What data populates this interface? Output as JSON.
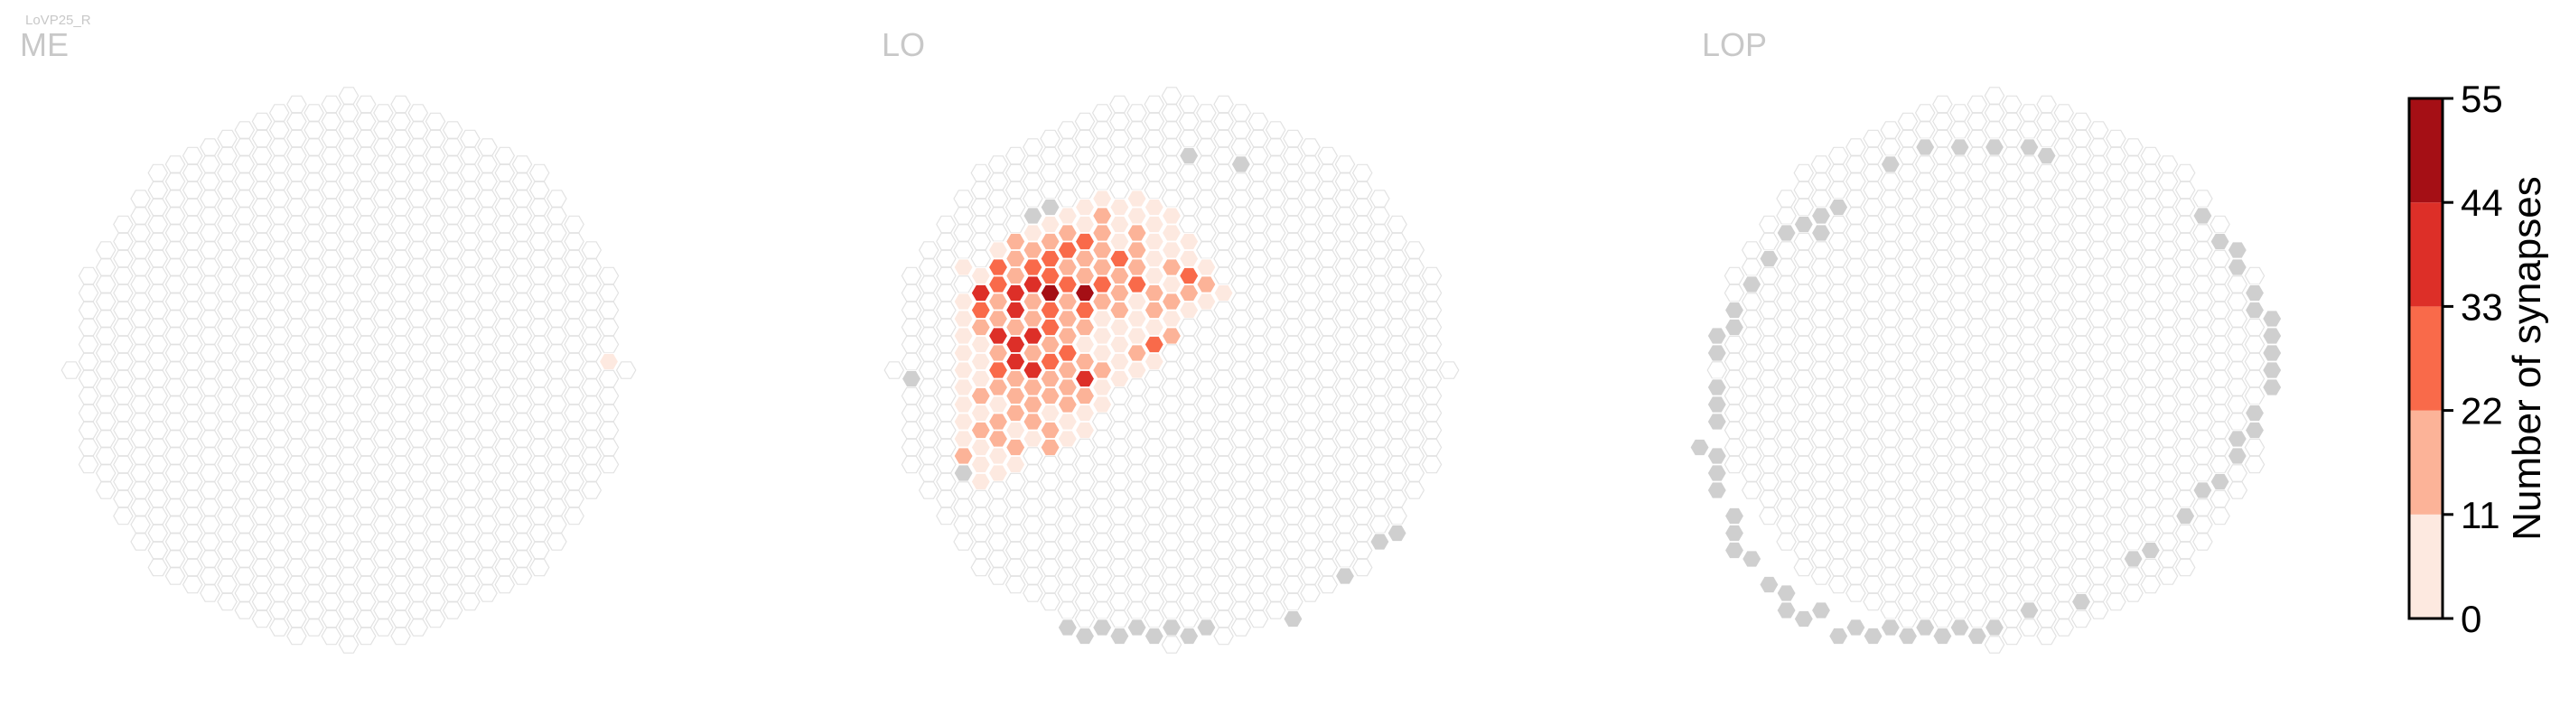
{
  "figure": {
    "cell_type_label": "LoVP25_R",
    "panels": [
      "ME",
      "LO",
      "LOP"
    ]
  },
  "colorbar": {
    "label": "Number of synapses",
    "ticks": [
      "0",
      "11",
      "22",
      "33",
      "44",
      "55"
    ],
    "bins": [
      {
        "from": 0,
        "to": 11,
        "color": "#fde9e0"
      },
      {
        "from": 11,
        "to": 22,
        "color": "#fcb398"
      },
      {
        "from": 22,
        "to": 33,
        "color": "#f96a4a"
      },
      {
        "from": 33,
        "to": 44,
        "color": "#dd2f28"
      },
      {
        "from": 44,
        "to": 55,
        "color": "#a50f15"
      }
    ]
  },
  "style": {
    "empty_fill": "#ffffff",
    "empty_stroke": "#e2e2e2",
    "outside_fill": "#cfcfcf",
    "panel_label_color": "#c8c8c8"
  },
  "chart_data": {
    "type": "heatmap",
    "layout": "hexagonal column map per neuropil",
    "value_label": "Number of synapses",
    "range": [
      0,
      55
    ],
    "panels": [
      {
        "name": "ME",
        "synapses": [
          [
            15,
            -1,
            8
          ]
        ],
        "no_data": []
      },
      {
        "name": "LO",
        "synapses": [
          [
            -5,
            -10,
            3
          ],
          [
            -4,
            -10,
            2
          ],
          [
            -3,
            -10,
            4
          ],
          [
            -2,
            -10,
            3
          ],
          [
            -1,
            -10,
            2
          ],
          [
            -7,
            -9,
            4
          ],
          [
            -6,
            -9,
            3
          ],
          [
            -5,
            -9,
            6
          ],
          [
            -4,
            -9,
            18
          ],
          [
            -3,
            -9,
            6
          ],
          [
            -2,
            -9,
            5
          ],
          [
            -1,
            -9,
            6
          ],
          [
            0,
            -9,
            5
          ],
          [
            -9,
            -8,
            15
          ],
          [
            -8,
            -8,
            6
          ],
          [
            -7,
            -8,
            18
          ],
          [
            -6,
            -8,
            20
          ],
          [
            -5,
            -8,
            25
          ],
          [
            -4,
            -8,
            18
          ],
          [
            -3,
            -8,
            9
          ],
          [
            -2,
            -8,
            12
          ],
          [
            -1,
            -8,
            8
          ],
          [
            0,
            -8,
            4
          ],
          [
            1,
            -8,
            3
          ],
          [
            -10,
            -7,
            8
          ],
          [
            -9,
            -7,
            12
          ],
          [
            -8,
            -7,
            16
          ],
          [
            -7,
            -7,
            28
          ],
          [
            -6,
            -7,
            24
          ],
          [
            -5,
            -7,
            20
          ],
          [
            -4,
            -7,
            14
          ],
          [
            -3,
            -7,
            24
          ],
          [
            -2,
            -7,
            12
          ],
          [
            -1,
            -7,
            10
          ],
          [
            0,
            -7,
            6
          ],
          [
            1,
            -7,
            4
          ],
          [
            -12,
            -6,
            4
          ],
          [
            -11,
            -6,
            6
          ],
          [
            -10,
            -6,
            30
          ],
          [
            -9,
            -6,
            12
          ],
          [
            -8,
            -6,
            24
          ],
          [
            -7,
            -6,
            28
          ],
          [
            -6,
            -6,
            18
          ],
          [
            -5,
            -6,
            22
          ],
          [
            -4,
            -6,
            16
          ],
          [
            -3,
            -6,
            20
          ],
          [
            -2,
            -6,
            14
          ],
          [
            -1,
            -6,
            8
          ],
          [
            0,
            -6,
            20
          ],
          [
            1,
            -6,
            28
          ],
          [
            2,
            -6,
            10
          ],
          [
            -11,
            -5,
            38
          ],
          [
            -10,
            -5,
            24
          ],
          [
            -9,
            -5,
            40
          ],
          [
            -8,
            -5,
            36
          ],
          [
            -7,
            -5,
            50
          ],
          [
            -6,
            -5,
            28
          ],
          [
            -5,
            -5,
            55
          ],
          [
            -4,
            -5,
            30
          ],
          [
            -3,
            -5,
            22
          ],
          [
            -2,
            -5,
            26
          ],
          [
            -1,
            -5,
            14
          ],
          [
            0,
            -5,
            4
          ],
          [
            1,
            -5,
            22
          ],
          [
            2,
            -5,
            20
          ],
          [
            3,
            -5,
            6
          ],
          [
            -12,
            -4,
            8
          ],
          [
            -11,
            -4,
            24
          ],
          [
            -10,
            -4,
            16
          ],
          [
            -9,
            -4,
            34
          ],
          [
            -8,
            -4,
            20
          ],
          [
            -7,
            -4,
            26
          ],
          [
            -6,
            -4,
            18
          ],
          [
            -5,
            -4,
            30
          ],
          [
            -4,
            -4,
            20
          ],
          [
            -3,
            -4,
            14
          ],
          [
            -2,
            -4,
            6
          ],
          [
            -1,
            -4,
            20
          ],
          [
            0,
            -4,
            16
          ],
          [
            1,
            -4,
            10
          ],
          [
            2,
            -4,
            6
          ],
          [
            -12,
            -3,
            6
          ],
          [
            -11,
            -3,
            16
          ],
          [
            -10,
            -3,
            12
          ],
          [
            -9,
            -3,
            14
          ],
          [
            -8,
            -3,
            22
          ],
          [
            -7,
            -3,
            26
          ],
          [
            -6,
            -3,
            16
          ],
          [
            -5,
            -3,
            12
          ],
          [
            -4,
            -3,
            8
          ],
          [
            -3,
            -3,
            6
          ],
          [
            -2,
            -3,
            4
          ],
          [
            -1,
            -3,
            6
          ],
          [
            0,
            -3,
            4
          ],
          [
            -12,
            -2,
            5
          ],
          [
            -11,
            -2,
            8
          ],
          [
            -10,
            -2,
            38
          ],
          [
            -9,
            -2,
            42
          ],
          [
            -8,
            -2,
            36
          ],
          [
            -7,
            -2,
            14
          ],
          [
            -6,
            -2,
            12
          ],
          [
            -5,
            -2,
            8
          ],
          [
            -4,
            -2,
            6
          ],
          [
            -3,
            -2,
            4
          ],
          [
            -2,
            -2,
            6
          ],
          [
            -1,
            -2,
            30
          ],
          [
            0,
            -2,
            18
          ],
          [
            -12,
            -1,
            6
          ],
          [
            -11,
            -1,
            10
          ],
          [
            -10,
            -1,
            18
          ],
          [
            -9,
            -1,
            36
          ],
          [
            -8,
            -1,
            22
          ],
          [
            -7,
            -1,
            30
          ],
          [
            -6,
            -1,
            26
          ],
          [
            -5,
            -1,
            16
          ],
          [
            -4,
            -1,
            8
          ],
          [
            -3,
            -1,
            4
          ],
          [
            -2,
            -1,
            12
          ],
          [
            -1,
            -1,
            8
          ],
          [
            -12,
            0,
            4
          ],
          [
            -11,
            0,
            8
          ],
          [
            -10,
            0,
            24
          ],
          [
            -9,
            0,
            16
          ],
          [
            -8,
            0,
            34
          ],
          [
            -7,
            0,
            22
          ],
          [
            -6,
            0,
            18
          ],
          [
            -5,
            0,
            36
          ],
          [
            -4,
            0,
            14
          ],
          [
            -3,
            0,
            6
          ],
          [
            -2,
            0,
            4
          ],
          [
            -12,
            1,
            8
          ],
          [
            -11,
            1,
            12
          ],
          [
            -10,
            1,
            16
          ],
          [
            -9,
            1,
            12
          ],
          [
            -8,
            1,
            20
          ],
          [
            -7,
            1,
            18
          ],
          [
            -6,
            1,
            20
          ],
          [
            -5,
            1,
            14
          ],
          [
            -4,
            1,
            10
          ],
          [
            -12,
            2,
            6
          ],
          [
            -11,
            2,
            10
          ],
          [
            -10,
            2,
            8
          ],
          [
            -9,
            2,
            20
          ],
          [
            -8,
            2,
            16
          ],
          [
            -7,
            2,
            10
          ],
          [
            -6,
            2,
            14
          ],
          [
            -5,
            2,
            6
          ],
          [
            -4,
            2,
            4
          ],
          [
            -12,
            3,
            4
          ],
          [
            -11,
            3,
            12
          ],
          [
            -10,
            3,
            18
          ],
          [
            -9,
            3,
            6
          ],
          [
            -8,
            3,
            14
          ],
          [
            -7,
            3,
            16
          ],
          [
            -6,
            3,
            8
          ],
          [
            -5,
            3,
            4
          ],
          [
            -12,
            4,
            6
          ],
          [
            -11,
            4,
            4
          ],
          [
            -10,
            4,
            14
          ],
          [
            -9,
            4,
            20
          ],
          [
            -8,
            4,
            8
          ],
          [
            -7,
            4,
            16
          ],
          [
            -6,
            4,
            10
          ],
          [
            -12,
            5,
            14
          ],
          [
            -11,
            5,
            6
          ],
          [
            -10,
            5,
            4
          ],
          [
            -9,
            5,
            6
          ],
          [
            -11,
            6,
            8
          ],
          [
            -10,
            6,
            6
          ]
        ],
        "no_data": [
          [
            1,
            -13
          ],
          [
            4,
            -12
          ],
          [
            -7,
            -10
          ],
          [
            -8,
            -9
          ],
          [
            -10,
            -6
          ],
          [
            -15,
            0
          ],
          [
            -12,
            6
          ],
          [
            13,
            9
          ],
          [
            12,
            10
          ],
          [
            10,
            12
          ],
          [
            7,
            14
          ],
          [
            2,
            15
          ],
          [
            1,
            15
          ],
          [
            0,
            15
          ],
          [
            -1,
            15
          ],
          [
            -2,
            15
          ],
          [
            -3,
            15
          ],
          [
            -4,
            15
          ],
          [
            -5,
            15
          ],
          [
            -6,
            15
          ]
        ]
      },
      {
        "name": "LOP",
        "synapses": [],
        "no_data": [
          [
            -4,
            -13
          ],
          [
            -2,
            -13
          ],
          [
            0,
            -13
          ],
          [
            2,
            -13
          ],
          [
            3,
            -13
          ],
          [
            -6,
            -12
          ],
          [
            -9,
            -10
          ],
          [
            -10,
            -9
          ],
          [
            -11,
            -9
          ],
          [
            -10,
            -8
          ],
          [
            -12,
            -8
          ],
          [
            -13,
            -7
          ],
          [
            -14,
            -5
          ],
          [
            -15,
            -4
          ],
          [
            -15,
            -3
          ],
          [
            -16,
            -2
          ],
          [
            -16,
            -1
          ],
          [
            -16,
            1
          ],
          [
            -16,
            2
          ],
          [
            -16,
            3
          ],
          [
            -17,
            4
          ],
          [
            -16,
            5
          ],
          [
            -16,
            6
          ],
          [
            -16,
            7
          ],
          [
            -15,
            8
          ],
          [
            -15,
            9
          ],
          [
            -15,
            10
          ],
          [
            -14,
            11
          ],
          [
            -13,
            12
          ],
          [
            -12,
            13
          ],
          [
            -12,
            14
          ],
          [
            -11,
            14
          ],
          [
            -10,
            14
          ],
          [
            -9,
            15
          ],
          [
            -8,
            15
          ],
          [
            -7,
            15
          ],
          [
            -6,
            15
          ],
          [
            -5,
            15
          ],
          [
            -4,
            15
          ],
          [
            -3,
            15
          ],
          [
            -2,
            15
          ],
          [
            -1,
            15
          ],
          [
            0,
            15
          ],
          [
            2,
            14
          ],
          [
            5,
            13
          ],
          [
            8,
            11
          ],
          [
            9,
            10
          ],
          [
            11,
            8
          ],
          [
            12,
            7
          ],
          [
            13,
            6
          ],
          [
            14,
            5
          ],
          [
            14,
            4
          ],
          [
            15,
            3
          ],
          [
            15,
            2
          ],
          [
            16,
            1
          ],
          [
            16,
            0
          ],
          [
            16,
            -1
          ],
          [
            16,
            -2
          ],
          [
            16,
            -3
          ],
          [
            15,
            -4
          ],
          [
            15,
            -5
          ],
          [
            14,
            -6
          ],
          [
            14,
            -7
          ],
          [
            13,
            -8
          ],
          [
            12,
            -9
          ]
        ]
      }
    ]
  }
}
